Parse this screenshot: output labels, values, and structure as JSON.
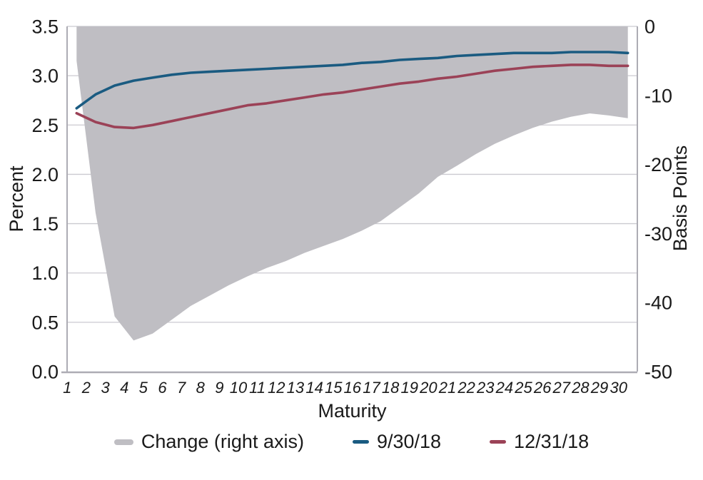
{
  "chart_data": {
    "type": "area-line-combo",
    "title": "",
    "x_axis": {
      "label": "Maturity",
      "categories": [
        "1",
        "2",
        "3",
        "4",
        "5",
        "6",
        "7",
        "8",
        "9",
        "10",
        "11",
        "12",
        "13",
        "14",
        "15",
        "16",
        "17",
        "18",
        "19",
        "20",
        "21",
        "22",
        "23",
        "24",
        "25",
        "26",
        "27",
        "28",
        "29",
        "30"
      ]
    },
    "left_axis": {
      "label": "Percent",
      "min": 0.0,
      "max": 3.5,
      "step": 0.5,
      "tick_labels": [
        "3.5",
        "3.0",
        "2.5",
        "2.0",
        "1.5",
        "1.0",
        "0.5",
        "0.0"
      ]
    },
    "right_axis": {
      "label": "Basis Points",
      "min": -50,
      "max": 0,
      "step": 10,
      "tick_labels": [
        "0",
        "-10",
        "-20",
        "-30",
        "-40",
        "-50"
      ]
    },
    "grid": true,
    "legend_position": "bottom",
    "series": [
      {
        "name": "Change (right axis)",
        "type": "area",
        "axis": "right",
        "unit": "basis points",
        "color": "#bfbec3",
        "values": [
          -5,
          -27,
          -42,
          -45.5,
          -44.5,
          -42.5,
          -40.5,
          -39,
          -37.5,
          -36.2,
          -35,
          -34,
          -32.8,
          -31.8,
          -30.8,
          -29.6,
          -28.2,
          -26.2,
          -24.2,
          -21.8,
          -20.2,
          -18.5,
          -17,
          -15.8,
          -14.7,
          -13.8,
          -13.1,
          -12.6,
          -12.9,
          -13.3
        ]
      },
      {
        "name": "9/30/18",
        "type": "line",
        "axis": "left",
        "unit": "percent",
        "color": "#1a5b81",
        "values": [
          2.67,
          2.81,
          2.9,
          2.95,
          2.98,
          3.01,
          3.03,
          3.04,
          3.05,
          3.06,
          3.07,
          3.08,
          3.09,
          3.1,
          3.11,
          3.13,
          3.14,
          3.16,
          3.17,
          3.18,
          3.2,
          3.21,
          3.22,
          3.23,
          3.23,
          3.23,
          3.24,
          3.24,
          3.24,
          3.23
        ]
      },
      {
        "name": "12/31/18",
        "type": "line",
        "axis": "left",
        "unit": "percent",
        "color": "#9b4257",
        "values": [
          2.62,
          2.53,
          2.48,
          2.47,
          2.5,
          2.54,
          2.58,
          2.62,
          2.66,
          2.7,
          2.72,
          2.75,
          2.78,
          2.81,
          2.83,
          2.86,
          2.89,
          2.92,
          2.94,
          2.97,
          2.99,
          3.02,
          3.05,
          3.07,
          3.09,
          3.1,
          3.11,
          3.11,
          3.1,
          3.1
        ]
      }
    ],
    "colors": {
      "grid": "#cbcad0",
      "axis": "#adacb4",
      "text": "#1a1a1a",
      "background": "#ffffff"
    }
  }
}
